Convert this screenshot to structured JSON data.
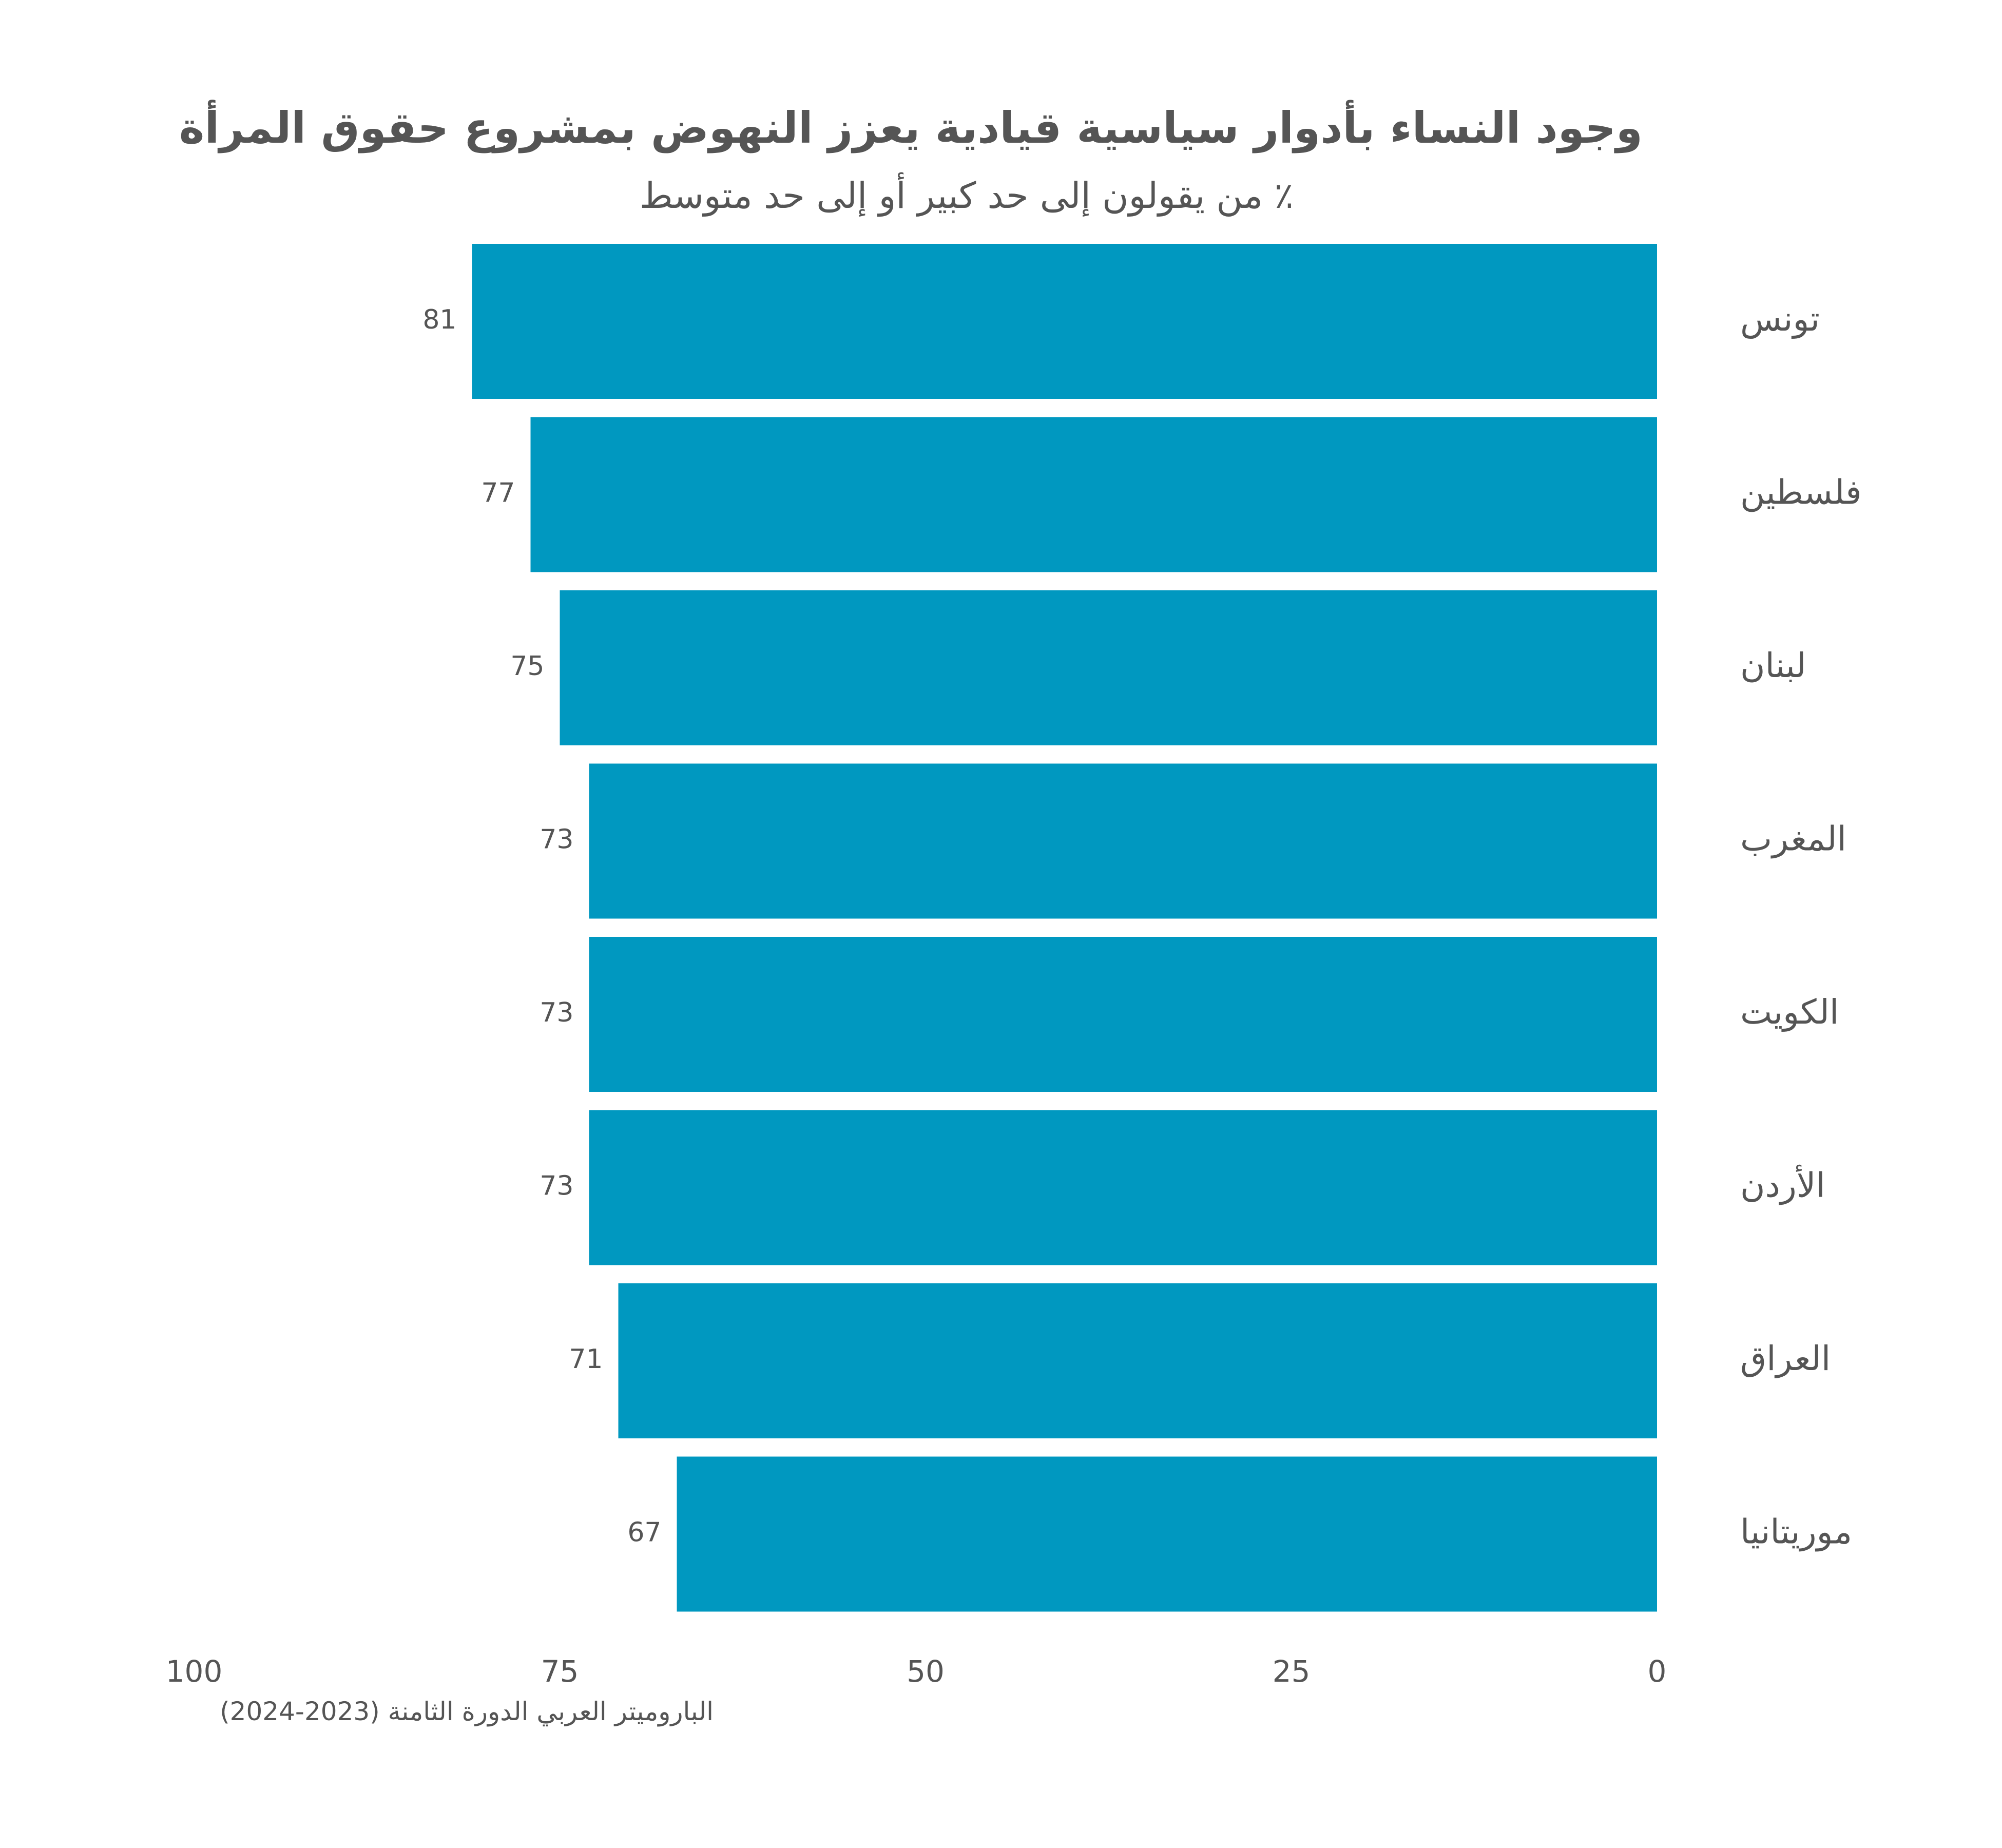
{
  "chart_data": {
    "type": "bar",
    "orientation": "horizontal",
    "title": "وجود النساء بأدوار سياسية قيادية يعزز النهوض بمشروع حقوق المرأة",
    "subtitle": "٪ من يقولون إلى حد كبير أو إلى حد متوسط",
    "categories": [
      "تونس",
      "فلسطين",
      "لبنان",
      "المغرب",
      "الكويت",
      "الأردن",
      "العراق",
      "موريتانيا"
    ],
    "values": [
      81,
      77,
      75,
      73,
      73,
      73,
      71,
      67
    ],
    "xlim": [
      0,
      100
    ],
    "x_direction": "reversed",
    "x_ticks": [
      0,
      25,
      50,
      75,
      100
    ],
    "data_labels": true,
    "grid": false,
    "legend": "none",
    "bar_color": "#0098C0",
    "source": "الباروميتر العربي الدورة الثامنة (2023-2024)"
  }
}
